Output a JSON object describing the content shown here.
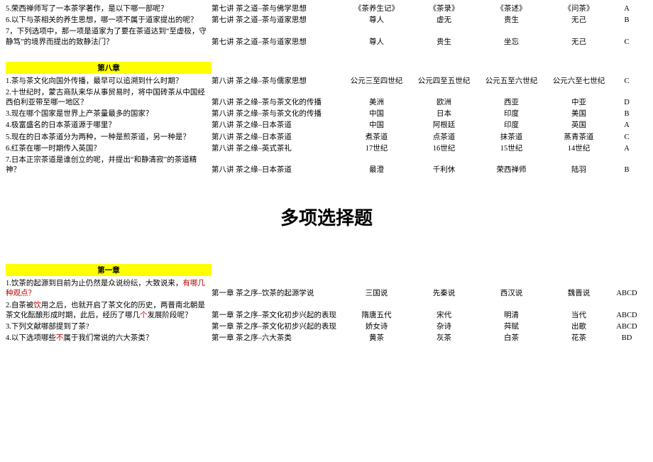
{
  "top_rows": [
    {
      "q": "5.荣西禅师写了一本茶学著作，是以下哪一部呢？",
      "src": "第七讲 茶之道–茶与佛学思想",
      "a": "《茶养生记》",
      "b": "《茶录》",
      "c": "《茶述》",
      "d": "《问茶》",
      "ans": "A"
    },
    {
      "q": "6.以下与茶相关的养生思想，哪一项不属于道家提出的呢？",
      "src": "第七讲 茶之道–茶与道家思想",
      "a": "尊人",
      "b": "虚无",
      "c": "贵生",
      "d": "无己",
      "ans": "B"
    },
    {
      "q": "7，下列选项中，那一项是道家为了要在茶道达到“至虚极，守静笃”的境界而提出的致静法门？",
      "src": "第七讲 茶之道–茶与道家思想",
      "a": "尊人",
      "b": "贵生",
      "c": "坐忘",
      "d": "无己",
      "ans": "C"
    }
  ],
  "chapter8": {
    "title": "第八章",
    "rows": [
      {
        "q": "1.茶与茶文化向国外传播，最早可以追溯到什么时期？",
        "src": "第八讲 茶之缘–茶与儒家思想",
        "a": "公元三至四世纪",
        "b": "公元四至五世纪",
        "c": "公元五至六世纪",
        "d": "公元六至七世纪",
        "ans": "C"
      },
      {
        "q": "2.十世纪时，蒙古商队来华从事贸易时，将中国砖茶从中国经西伯利亚带至哪一地区？",
        "src": "第八讲 茶之缘–茶与茶文化的传播",
        "a": "美洲",
        "b": "欧洲",
        "c": "西亚",
        "d": "中亚",
        "ans": "D"
      },
      {
        "q": "3.现在哪个国家是世界上产茶量最多的国家？",
        "src": "第八讲 茶之缘–茶与茶文化的传播",
        "a": "中国",
        "b": "日本",
        "c": "印度",
        "d": "美国",
        "ans": "B"
      },
      {
        "q": "4.极富盛名的日本茶道源于哪里？",
        "src": "第八讲 茶之缘–日本茶道",
        "a": "中国",
        "b": "阿根廷",
        "c": "印度",
        "d": "英国",
        "ans": "A"
      },
      {
        "q": "5.现在的日本茶道分为两种，一种是煎茶道，另一种是？",
        "src": "第八讲 茶之缘–日本茶道",
        "a": "煮茶道",
        "b": "点茶道",
        "c": "抹茶道",
        "d": "蒸青茶道",
        "ans": "C"
      },
      {
        "q": "6.红茶在哪一时期传入英国？",
        "src": "第八讲 茶之缘–英式茶礼",
        "a": "17世纪",
        "b": "16世纪",
        "c": "15世纪",
        "d": "14世纪",
        "ans": "A"
      },
      {
        "q": "7.日本正宗茶道是谁创立的呢，并提出“和静清寂”的茶道精神？",
        "src": "第八讲 茶之缘–日本茶道",
        "a": "最澄",
        "b": "千利休",
        "c": "荣西禅师",
        "d": "陆羽",
        "ans": "B"
      }
    ]
  },
  "multi_title": "多项选择题",
  "chapter1": {
    "title": "第一章",
    "rows": [
      {
        "q_pre": "1.饮茶的起源到目前为止仍然是众说纷纭，大致说来，",
        "q_red": "有哪几种观点？",
        "src": "第一章 茶之序–饮茶的起源学说",
        "a": "三国说",
        "b": "先秦说",
        "c": "西汉说",
        "d": "魏晋说",
        "ans": "ABCD"
      },
      {
        "q_pre": "2.自茶被",
        "q_red1": "饮",
        "q_mid": "用之后，也就开启了茶文化的历史，两晋南北朝是茶文化酝酿形成时期，此后，经历了哪几",
        "q_red2": "个",
        "q_post": "发展阶段呢？",
        "src": "第一章 茶之序–茶文化初步兴起的表现",
        "a": "隋唐五代",
        "b": "宋代",
        "c": "明清",
        "d": "当代",
        "ans": "ABCD"
      },
      {
        "q": "3.下列文献哪部提到了茶?",
        "src": "第一章 茶之序–茶文化初步兴起的表现",
        "a": "娇女诗",
        "b": "杂诗",
        "c": "荈赋",
        "d": "出歌",
        "ans": "ABCD"
      },
      {
        "q_pre": "4.以下选项哪些",
        "q_red": "不",
        "q_post": "属于我们常说的六大茶类？",
        "src": "第一章 茶之序–六大茶类",
        "a": "黄茶",
        "b": "灰茶",
        "c": "白茶",
        "d": "花茶",
        "ans": "BD"
      }
    ]
  }
}
